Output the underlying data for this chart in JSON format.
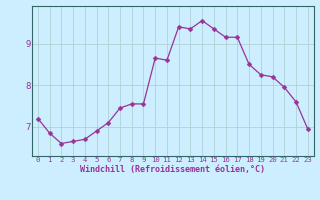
{
  "x": [
    0,
    1,
    2,
    3,
    4,
    5,
    6,
    7,
    8,
    9,
    10,
    11,
    12,
    13,
    14,
    15,
    16,
    17,
    18,
    19,
    20,
    21,
    22,
    23
  ],
  "y": [
    7.2,
    6.85,
    6.6,
    6.65,
    6.7,
    6.9,
    7.1,
    7.45,
    7.55,
    7.55,
    8.65,
    8.6,
    9.4,
    9.35,
    9.55,
    9.35,
    9.15,
    9.15,
    8.5,
    8.25,
    8.2,
    7.95,
    7.6,
    6.95
  ],
  "line_color": "#993399",
  "marker": "D",
  "marker_size": 2.5,
  "bg_color": "#cceeff",
  "grid_color": "#aacccc",
  "xlabel": "Windchill (Refroidissement éolien,°C)",
  "xlabel_color": "#993399",
  "yticks": [
    7,
    8,
    9
  ],
  "xticks": [
    0,
    1,
    2,
    3,
    4,
    5,
    6,
    7,
    8,
    9,
    10,
    11,
    12,
    13,
    14,
    15,
    16,
    17,
    18,
    19,
    20,
    21,
    22,
    23
  ],
  "xlim": [
    -0.5,
    23.5
  ],
  "ylim": [
    6.3,
    9.9
  ],
  "tick_color": "#993399",
  "spine_color": "#336666",
  "xlabel_fontsize": 6.0,
  "xtick_fontsize": 5.2,
  "ytick_fontsize": 6.5
}
